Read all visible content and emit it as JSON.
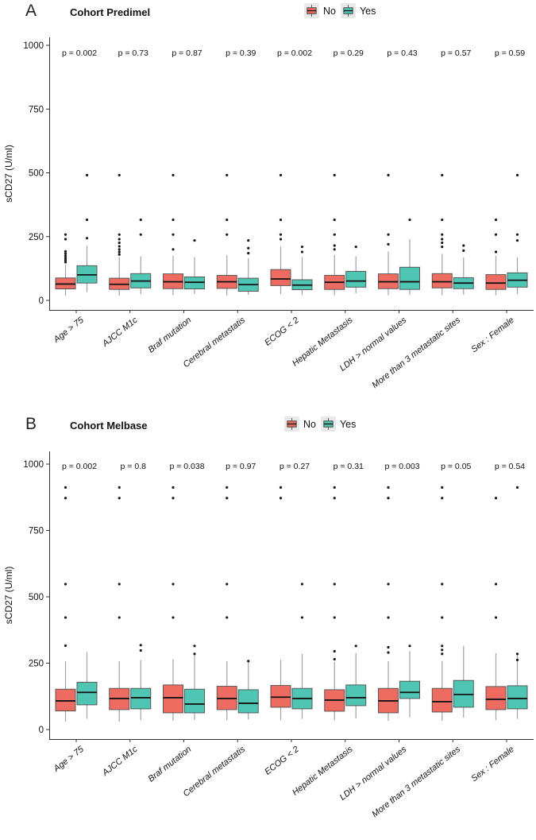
{
  "colors": {
    "no": "#ED6B61",
    "yes": "#4FC6B4",
    "axis": "#333333",
    "whisker": "#a3a3a3",
    "box_border": "#4d4d4d",
    "median": "#141414",
    "outlier": "#1a1a1a",
    "legend_key_bg": "#e9e9e9",
    "text": "#111111"
  },
  "chart_data": [
    {
      "type": "boxplot",
      "panel_label": "A",
      "title": "Cohort Predimel",
      "ylabel": "sCD27 (U/ml)",
      "ylim": [
        0,
        1000
      ],
      "yticks": [
        0,
        250,
        500,
        750,
        1000
      ],
      "grid": "off",
      "legend_position": "top-center",
      "legend": {
        "no_label": "No",
        "yes_label": "Yes"
      },
      "categories": [
        {
          "name": "Age > 75",
          "p_label": "p = 0.002",
          "no": {
            "low": 18,
            "q1": 45,
            "median": 64,
            "q3": 88,
            "high": 141,
            "outliers": [
              150,
              158,
              166,
              174,
              183,
              192,
              240,
              258
            ]
          },
          "yes": {
            "low": 32,
            "q1": 68,
            "median": 100,
            "q3": 136,
            "high": 214,
            "outliers": [
              244,
              316,
              491
            ]
          }
        },
        {
          "name": "AJCC M1c",
          "p_label": "p = 0.73",
          "no": {
            "low": 18,
            "q1": 43,
            "median": 63,
            "q3": 87,
            "high": 170,
            "outliers": [
              180,
              190,
              200,
              212,
              226,
              240,
              258,
              491
            ]
          },
          "yes": {
            "low": 25,
            "q1": 49,
            "median": 76,
            "q3": 105,
            "high": 173,
            "outliers": [
              258,
              316
            ]
          }
        },
        {
          "name": "Braf mutation",
          "p_label": "p = 0.87",
          "no": {
            "low": 20,
            "q1": 46,
            "median": 73,
            "q3": 104,
            "high": 175,
            "outliers": [
              200,
              258,
              316,
              491
            ]
          },
          "yes": {
            "low": 25,
            "q1": 45,
            "median": 71,
            "q3": 92,
            "high": 170,
            "outliers": [
              235
            ]
          }
        },
        {
          "name": "Cerebral metastatis",
          "p_label": "p = 0.39",
          "no": {
            "low": 20,
            "q1": 47,
            "median": 73,
            "q3": 98,
            "high": 178,
            "outliers": [
              258,
              316,
              491
            ]
          },
          "yes": {
            "low": 22,
            "q1": 36,
            "median": 62,
            "q3": 87,
            "high": 165,
            "outliers": [
              185,
              205,
              235
            ]
          }
        },
        {
          "name": "ECOG < 2",
          "p_label": "p = 0.002",
          "no": {
            "low": 25,
            "q1": 58,
            "median": 84,
            "q3": 121,
            "high": 211,
            "outliers": [
              240,
              258,
              316,
              491
            ]
          },
          "yes": {
            "low": 20,
            "q1": 42,
            "median": 60,
            "q3": 81,
            "high": 170,
            "outliers": [
              190,
              210
            ]
          }
        },
        {
          "name": "Hepatic Metastasis",
          "p_label": "p = 0.29",
          "no": {
            "low": 20,
            "q1": 43,
            "median": 71,
            "q3": 98,
            "high": 178,
            "outliers": [
              200,
              215,
              258,
              316,
              491
            ]
          },
          "yes": {
            "low": 28,
            "q1": 52,
            "median": 76,
            "q3": 114,
            "high": 173,
            "outliers": [
              210
            ]
          }
        },
        {
          "name": "LDH > normal values",
          "p_label": "p = 0.43",
          "no": {
            "low": 20,
            "q1": 46,
            "median": 73,
            "q3": 104,
            "high": 192,
            "outliers": [
              220,
              258,
              491
            ]
          },
          "yes": {
            "low": 22,
            "q1": 43,
            "median": 73,
            "q3": 130,
            "high": 240,
            "outliers": [
              316
            ]
          }
        },
        {
          "name": "More than 3 metastatic sites",
          "p_label": "p = 0.57",
          "no": {
            "low": 20,
            "q1": 49,
            "median": 73,
            "q3": 105,
            "high": 182,
            "outliers": [
              210,
              226,
              240,
              258,
              316,
              491
            ]
          },
          "yes": {
            "low": 22,
            "q1": 46,
            "median": 68,
            "q3": 89,
            "high": 169,
            "outliers": [
              195,
              215
            ]
          }
        },
        {
          "name": "Sex : Female",
          "p_label": "p = 0.59",
          "no": {
            "low": 20,
            "q1": 43,
            "median": 68,
            "q3": 101,
            "high": 175,
            "outliers": [
              190,
              258,
              316
            ]
          },
          "yes": {
            "low": 25,
            "q1": 52,
            "median": 79,
            "q3": 108,
            "high": 169,
            "outliers": [
              235,
              258,
              491
            ]
          }
        }
      ]
    },
    {
      "type": "boxplot",
      "panel_label": "B",
      "title": "Cohort Melbase",
      "ylabel": "sCD27 (U/ml)",
      "ylim": [
        0,
        1000
      ],
      "yticks": [
        0,
        250,
        500,
        750,
        1000
      ],
      "grid": "off",
      "legend_position": "top-center",
      "legend": {
        "no_label": "No",
        "yes_label": "Yes"
      },
      "categories": [
        {
          "name": "Age > 75",
          "p_label": "p = 0.002",
          "no": {
            "low": 30,
            "q1": 70,
            "median": 108,
            "q3": 152,
            "high": 258,
            "outliers": [
              316,
              422,
              548,
              872,
              912
            ]
          },
          "yes": {
            "low": 40,
            "q1": 93,
            "median": 140,
            "q3": 178,
            "high": 292,
            "outliers": []
          }
        },
        {
          "name": "AJCC M1c",
          "p_label": "p = 0.8",
          "no": {
            "low": 30,
            "q1": 75,
            "median": 117,
            "q3": 155,
            "high": 258,
            "outliers": [
              422,
              548,
              872,
              912
            ]
          },
          "yes": {
            "low": 35,
            "q1": 78,
            "median": 120,
            "q3": 155,
            "high": 262,
            "outliers": [
              298,
              318
            ]
          }
        },
        {
          "name": "Braf mutation",
          "p_label": "p = 0.038",
          "no": {
            "low": 33,
            "q1": 63,
            "median": 120,
            "q3": 168,
            "high": 265,
            "outliers": [
              422,
              548,
              872,
              912
            ]
          },
          "yes": {
            "low": 36,
            "q1": 63,
            "median": 96,
            "q3": 152,
            "high": 288,
            "outliers": [
              285,
              315
            ]
          }
        },
        {
          "name": "Cerebral metastatis",
          "p_label": "p = 0.97",
          "no": {
            "low": 35,
            "q1": 75,
            "median": 117,
            "q3": 163,
            "high": 258,
            "outliers": [
              422,
              548,
              872,
              912
            ]
          },
          "yes": {
            "low": 38,
            "q1": 63,
            "median": 99,
            "q3": 150,
            "high": 262,
            "outliers": [
              258
            ]
          }
        },
        {
          "name": "ECOG < 2",
          "p_label": "p = 0.27",
          "no": {
            "low": 35,
            "q1": 84,
            "median": 122,
            "q3": 166,
            "high": 262,
            "outliers": [
              872,
              912
            ]
          },
          "yes": {
            "low": 40,
            "q1": 78,
            "median": 117,
            "q3": 155,
            "high": 285,
            "outliers": [
              422,
              548
            ]
          }
        },
        {
          "name": "Hepatic Metastasis",
          "p_label": "p = 0.31",
          "no": {
            "low": 35,
            "q1": 69,
            "median": 111,
            "q3": 150,
            "high": 255,
            "outliers": [
              265,
              295,
              422,
              548,
              872,
              912
            ]
          },
          "yes": {
            "low": 42,
            "q1": 90,
            "median": 120,
            "q3": 168,
            "high": 288,
            "outliers": [
              315
            ]
          }
        },
        {
          "name": "LDH > normal values",
          "p_label": "p = 0.003",
          "no": {
            "low": 33,
            "q1": 63,
            "median": 108,
            "q3": 155,
            "high": 258,
            "outliers": [
              290,
              310,
              422,
              548,
              872,
              912
            ]
          },
          "yes": {
            "low": 45,
            "q1": 117,
            "median": 140,
            "q3": 182,
            "high": 296,
            "outliers": [
              315
            ]
          }
        },
        {
          "name": "More than 3 metastatic sites",
          "p_label": "p = 0.05",
          "no": {
            "low": 33,
            "q1": 66,
            "median": 105,
            "q3": 155,
            "high": 258,
            "outliers": [
              285,
              300,
              315,
              422,
              548,
              872,
              912
            ]
          },
          "yes": {
            "low": 45,
            "q1": 84,
            "median": 132,
            "q3": 185,
            "high": 315,
            "outliers": []
          }
        },
        {
          "name": "Sex : Female",
          "p_label": "p = 0.54",
          "no": {
            "low": 35,
            "q1": 75,
            "median": 114,
            "q3": 162,
            "high": 288,
            "outliers": [
              422,
              548,
              872
            ]
          },
          "yes": {
            "low": 40,
            "q1": 78,
            "median": 117,
            "q3": 165,
            "high": 285,
            "outliers": [
              262,
              285,
              912
            ]
          }
        }
      ]
    }
  ]
}
